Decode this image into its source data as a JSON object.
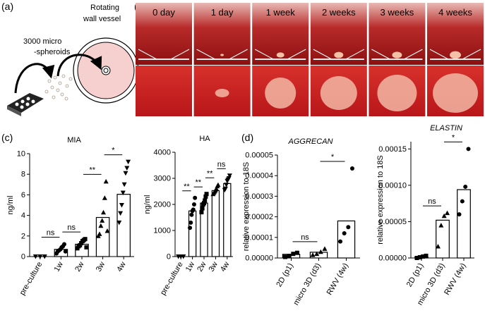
{
  "panel_labels": [
    "(a)",
    "(b)",
    "(c)",
    "(d)"
  ],
  "schematic": {
    "spheroids_label": [
      "3000 micro",
      "-spheroids"
    ],
    "vessel_label": [
      "Rotating",
      "wall vessel"
    ]
  },
  "photo_labels": [
    "0 day",
    "1 day",
    "1 week",
    "2 weeks",
    "3 weeks",
    "4 weeks"
  ],
  "chart_data": [
    {
      "type": "bar_dot",
      "title": "MIA",
      "ylabel": "ng/ml",
      "categories": [
        "pre-culture",
        "1w",
        "2w",
        "3w",
        "4w"
      ],
      "values": [
        0,
        0.7,
        1.2,
        3.8,
        6.05
      ],
      "points": [
        [
          0,
          0,
          0
        ],
        [
          0.3,
          0.5,
          0.6,
          0.7,
          0.9,
          1.0,
          1.2,
          0.5
        ],
        [
          0.8,
          1.0,
          1.1,
          1.3,
          1.5,
          1.6,
          1.7,
          0.9
        ],
        [
          2.0,
          2.2,
          3.0,
          3.5,
          4.3,
          5.7,
          7.3,
          2.5
        ],
        [
          3.3,
          4.2,
          5.0,
          6.2,
          7.0,
          8.1,
          8.6,
          9.2
        ]
      ],
      "markers": [
        "down-triangle",
        "circle",
        "square",
        "triangle",
        "down-triangle"
      ],
      "ylim": [
        0,
        10
      ],
      "yticks": [
        0,
        2,
        4,
        6,
        8,
        10
      ],
      "annotations": [
        {
          "from": 0,
          "to": 1,
          "label": "ns"
        },
        {
          "from": 1,
          "to": 2,
          "label": "ns"
        },
        {
          "from": 2,
          "to": 3,
          "label": "**"
        },
        {
          "from": 3,
          "to": 4,
          "label": "*"
        }
      ]
    },
    {
      "type": "bar_dot",
      "title": "HA",
      "ylabel": "ng/ml",
      "categories": [
        "pre-culture",
        "1w",
        "2w",
        "3w",
        "4w"
      ],
      "values": [
        0,
        1750,
        2050,
        2530,
        2800
      ],
      "points": [
        [
          0,
          0,
          0
        ],
        [
          1100,
          1300,
          1600,
          1750,
          1800,
          2000,
          2250
        ],
        [
          1700,
          1850,
          2000,
          2050,
          2150,
          2300,
          2400
        ],
        [
          2400,
          2450,
          2500,
          2550,
          2600,
          2700,
          2750
        ],
        [
          2550,
          2600,
          2750,
          2900,
          2950,
          3000,
          3100
        ]
      ],
      "markers": [
        "down-triangle",
        "circle",
        "square",
        "triangle",
        "down-triangle"
      ],
      "ylim": [
        0,
        4000
      ],
      "yticks": [
        0,
        1000,
        2000,
        3000,
        4000
      ],
      "annotations": [
        {
          "from": 0,
          "to": 1,
          "label": "**"
        },
        {
          "from": 1,
          "to": 2,
          "label": "**"
        },
        {
          "from": 2,
          "to": 3,
          "label": "**"
        },
        {
          "from": 3,
          "to": 4,
          "label": "ns"
        }
      ]
    },
    {
      "type": "bar_dot",
      "title": "AGGRECAN",
      "title_style": "italic",
      "ylabel": "relative expression to 18S",
      "categories": [
        "2D (p1)",
        "micro 3D (d3)",
        "RWV (4w)"
      ],
      "values": [
        1.8e-06,
        2.8e-06,
        1.8e-05
      ],
      "points": [
        [
          5e-07,
          1e-06,
          2e-06,
          2.5e-06
        ],
        [
          1.5e-06,
          2e-06,
          3e-06,
          4.5e-06
        ],
        [
          8e-06,
          1.2e-05,
          1.5e-05,
          4.35e-05
        ]
      ],
      "markers": [
        "square",
        "triangle",
        "circle"
      ],
      "ylim": [
        0,
        5e-05
      ],
      "yticks": [
        {
          "value": 0,
          "label": "0.00000"
        },
        {
          "value": 1e-05,
          "label": "0.00001"
        },
        {
          "value": 2e-05,
          "label": "0.00002"
        },
        {
          "value": 3e-05,
          "label": "0.00003"
        },
        {
          "value": 4e-05,
          "label": "0.00004"
        },
        {
          "value": 5e-05,
          "label": "0.00005"
        }
      ],
      "annotations": [
        {
          "from": 0,
          "to": 1,
          "label": "ns"
        },
        {
          "from": 1,
          "to": 2,
          "label": "*"
        }
      ]
    },
    {
      "type": "bar_dot",
      "title": "ELASTIN",
      "title_style": "italic",
      "ylabel": "relative expression to 18S",
      "categories": [
        "2D (p1)",
        "micro 3D (d3)",
        "RWV (4w)"
      ],
      "values": [
        1e-06,
        5.2e-05,
        9.4e-05
      ],
      "points": [
        [
          0,
          1e-06,
          2e-06,
          3e-06
        ],
        [
          1.6e-05,
          4.5e-05,
          5.8e-05,
          6.2e-05
        ],
        [
          6e-05,
          7.8e-05,
          9.8e-05,
          0.00015
        ]
      ],
      "markers": [
        "square",
        "triangle",
        "circle"
      ],
      "ylim": [
        0,
        0.00016
      ],
      "yticks": [
        {
          "value": 0,
          "label": "0.00000"
        },
        {
          "value": 5e-05,
          "label": "0.00005"
        },
        {
          "value": 0.0001,
          "label": "0.00010"
        },
        {
          "value": 0.00015,
          "label": "0.00015"
        }
      ],
      "annotations": [
        {
          "from": 0,
          "to": 1,
          "label": "ns"
        },
        {
          "from": 1,
          "to": 2,
          "label": "*"
        }
      ]
    }
  ]
}
